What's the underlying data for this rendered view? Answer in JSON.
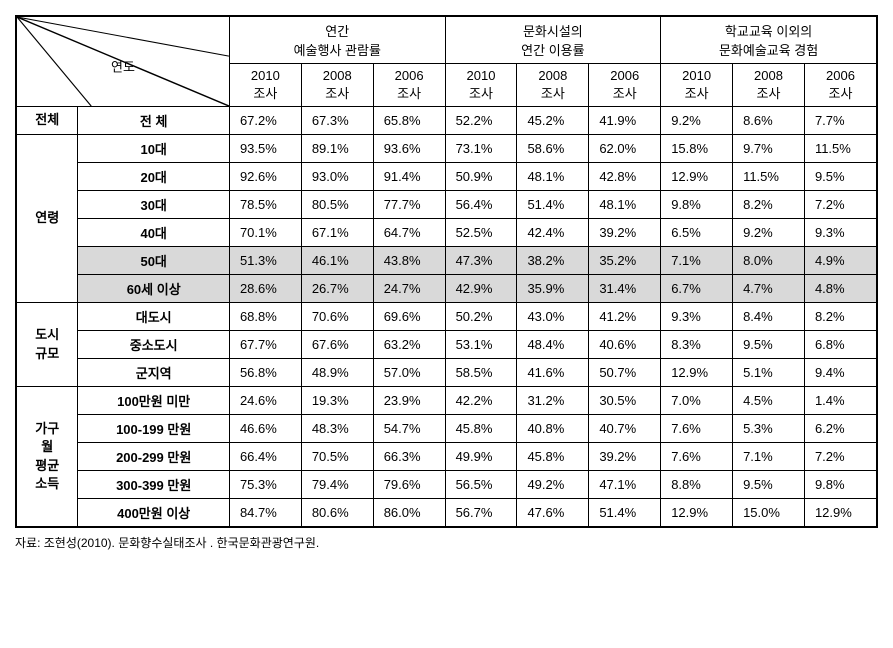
{
  "header": {
    "diagonal_label": "연도",
    "groups": [
      {
        "title": "연간\n예술행사 관람률",
        "years": [
          "2010\n조사",
          "2008\n조사",
          "2006\n조사"
        ]
      },
      {
        "title": "문화시설의\n연간 이용률",
        "years": [
          "2010\n조사",
          "2008\n조사",
          "2006\n조사"
        ]
      },
      {
        "title": "학교교육 이외의\n문화예술교육 경험",
        "years": [
          "2010\n조사",
          "2008\n조사",
          "2006\n조사"
        ]
      }
    ]
  },
  "sections": [
    {
      "category": "전체",
      "rows": [
        {
          "label": "전 체",
          "values": [
            "67.2%",
            "67.3%",
            "65.8%",
            "52.2%",
            "45.2%",
            "41.9%",
            "9.2%",
            "8.6%",
            "7.7%"
          ],
          "bold": true
        }
      ]
    },
    {
      "category": "연령",
      "rows": [
        {
          "label": "10대",
          "values": [
            "93.5%",
            "89.1%",
            "93.6%",
            "73.1%",
            "58.6%",
            "62.0%",
            "15.8%",
            "9.7%",
            "11.5%"
          ]
        },
        {
          "label": "20대",
          "values": [
            "92.6%",
            "93.0%",
            "91.4%",
            "50.9%",
            "48.1%",
            "42.8%",
            "12.9%",
            "11.5%",
            "9.5%"
          ]
        },
        {
          "label": "30대",
          "values": [
            "78.5%",
            "80.5%",
            "77.7%",
            "56.4%",
            "51.4%",
            "48.1%",
            "9.8%",
            "8.2%",
            "7.2%"
          ]
        },
        {
          "label": "40대",
          "values": [
            "70.1%",
            "67.1%",
            "64.7%",
            "52.5%",
            "42.4%",
            "39.2%",
            "6.5%",
            "9.2%",
            "9.3%"
          ]
        },
        {
          "label": "50대",
          "values": [
            "51.3%",
            "46.1%",
            "43.8%",
            "47.3%",
            "38.2%",
            "35.2%",
            "7.1%",
            "8.0%",
            "4.9%"
          ],
          "highlight": true
        },
        {
          "label": "60세 이상",
          "values": [
            "28.6%",
            "26.7%",
            "24.7%",
            "42.9%",
            "35.9%",
            "31.4%",
            "6.7%",
            "4.7%",
            "4.8%"
          ],
          "highlight": true
        }
      ]
    },
    {
      "category": "도시\n규모",
      "rows": [
        {
          "label": "대도시",
          "values": [
            "68.8%",
            "70.6%",
            "69.6%",
            "50.2%",
            "43.0%",
            "41.2%",
            "9.3%",
            "8.4%",
            "8.2%"
          ]
        },
        {
          "label": "중소도시",
          "values": [
            "67.7%",
            "67.6%",
            "63.2%",
            "53.1%",
            "48.4%",
            "40.6%",
            "8.3%",
            "9.5%",
            "6.8%"
          ]
        },
        {
          "label": "군지역",
          "values": [
            "56.8%",
            "48.9%",
            "57.0%",
            "58.5%",
            "41.6%",
            "50.7%",
            "12.9%",
            "5.1%",
            "9.4%"
          ]
        }
      ]
    },
    {
      "category": "가구\n월\n평균\n소득",
      "rows": [
        {
          "label": "100만원 미만",
          "values": [
            "24.6%",
            "19.3%",
            "23.9%",
            "42.2%",
            "31.2%",
            "30.5%",
            "7.0%",
            "4.5%",
            "1.4%"
          ]
        },
        {
          "label": "100-199 만원",
          "values": [
            "46.6%",
            "48.3%",
            "54.7%",
            "45.8%",
            "40.8%",
            "40.7%",
            "7.6%",
            "5.3%",
            "6.2%"
          ]
        },
        {
          "label": "200-299 만원",
          "values": [
            "66.4%",
            "70.5%",
            "66.3%",
            "49.9%",
            "45.8%",
            "39.2%",
            "7.6%",
            "7.1%",
            "7.2%"
          ]
        },
        {
          "label": "300-399 만원",
          "values": [
            "75.3%",
            "79.4%",
            "79.6%",
            "56.5%",
            "49.2%",
            "47.1%",
            "8.8%",
            "9.5%",
            "9.8%"
          ]
        },
        {
          "label": "400만원 이상",
          "values": [
            "84.7%",
            "80.6%",
            "86.0%",
            "56.7%",
            "47.6%",
            "51.4%",
            "12.9%",
            "15.0%",
            "12.9%"
          ]
        }
      ]
    }
  ],
  "source": "자료: 조현성(2010).  문화향수실태조사 . 한국문화관광연구원.",
  "table_style": {
    "border_color": "#000000",
    "highlight_bg": "#d9d9d9",
    "font_size": 13
  }
}
